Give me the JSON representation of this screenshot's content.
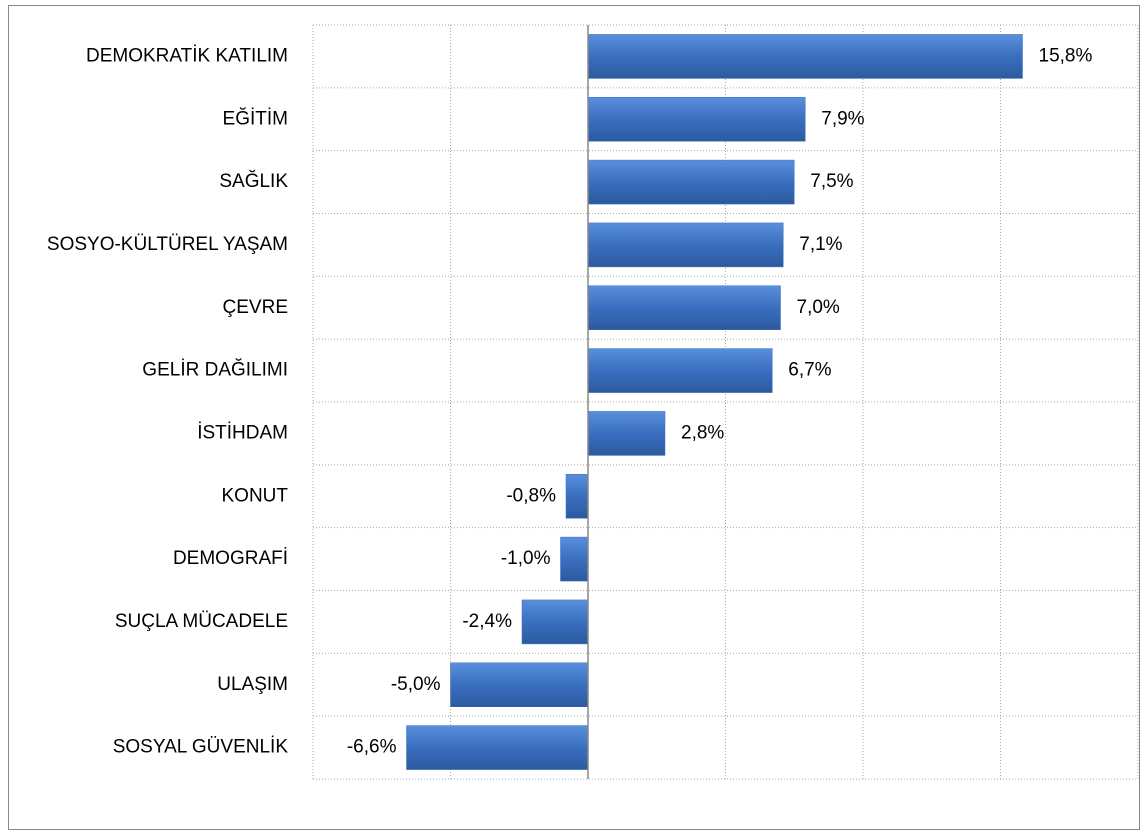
{
  "chart_data": {
    "type": "bar",
    "orientation": "horizontal",
    "categories": [
      "DEMOKRATİK KATILIM",
      "EĞİTİM",
      "SAĞLIK",
      "SOSYO-KÜLTÜREL YAŞAM",
      "ÇEVRE",
      "GELİR DAĞILIMI",
      "İSTİHDAM",
      "KONUT",
      "DEMOGRAFİ",
      "SUÇLA MÜCADELE",
      "ULAŞIM",
      "SOSYAL GÜVENLİK"
    ],
    "values": [
      15.8,
      7.9,
      7.5,
      7.1,
      7.0,
      6.7,
      2.8,
      -0.8,
      -1.0,
      -2.4,
      -5.0,
      -6.6
    ],
    "value_labels": [
      "15,8%",
      "7,9%",
      "7,5%",
      "7,1%",
      "7,0%",
      "6,7%",
      "2,8%",
      "-0,8%",
      "-1,0%",
      "-2,4%",
      "-5,0%",
      "-6,6%"
    ],
    "color": "#3a6fc0",
    "xlim": [
      -10,
      20
    ],
    "xticks": [
      -10,
      -5,
      0,
      5,
      10,
      15,
      20
    ],
    "grid": true
  }
}
